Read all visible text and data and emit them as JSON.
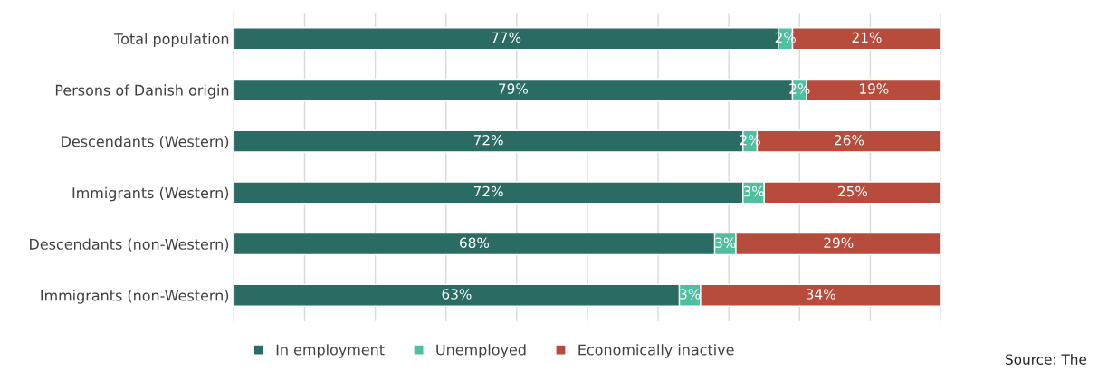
{
  "chart_data": {
    "type": "bar",
    "orientation": "horizontal",
    "stacked": true,
    "categories": [
      "Total population",
      "Persons of Danish origin",
      "Descendants (Western)",
      "Immigrants (Western)",
      "Descendants (non-Western)",
      "Immigrants (non-Western)"
    ],
    "series": [
      {
        "name": "In employment",
        "color": "#2a6b63",
        "values": [
          77,
          79,
          72,
          72,
          68,
          63
        ],
        "value_labels": [
          "77%",
          "79%",
          "72%",
          "72%",
          "68%",
          "63%"
        ]
      },
      {
        "name": "Unemployed",
        "color": "#4fbf9f",
        "values": [
          2,
          2,
          2,
          3,
          3,
          3
        ],
        "value_labels": [
          "2%",
          "2%",
          "2%",
          "3%",
          "3%",
          "3%"
        ]
      },
      {
        "name": "Economically inactive",
        "color": "#b84c3c",
        "values": [
          21,
          19,
          26,
          25,
          29,
          34
        ],
        "value_labels": [
          "21%",
          "19%",
          "26%",
          "25%",
          "29%",
          "34%"
        ]
      }
    ],
    "xlim": [
      0,
      100
    ],
    "xticks": [
      {
        "value": 0,
        "label": null
      },
      {
        "value": 10,
        "label": null
      },
      {
        "value": 20,
        "label": null
      },
      {
        "value": 30,
        "label": null
      },
      {
        "value": 40,
        "label": null
      },
      {
        "value": 50,
        "label": null
      },
      {
        "value": 60,
        "label": null
      },
      {
        "value": 70,
        "label": null
      },
      {
        "value": 80,
        "label": null
      },
      {
        "value": 90,
        "label": null
      },
      {
        "value": 100,
        "label": null
      }
    ],
    "tick_labels": "y",
    "grid": "x",
    "legend": "bottom",
    "annotations": [
      "Source: The"
    ]
  }
}
